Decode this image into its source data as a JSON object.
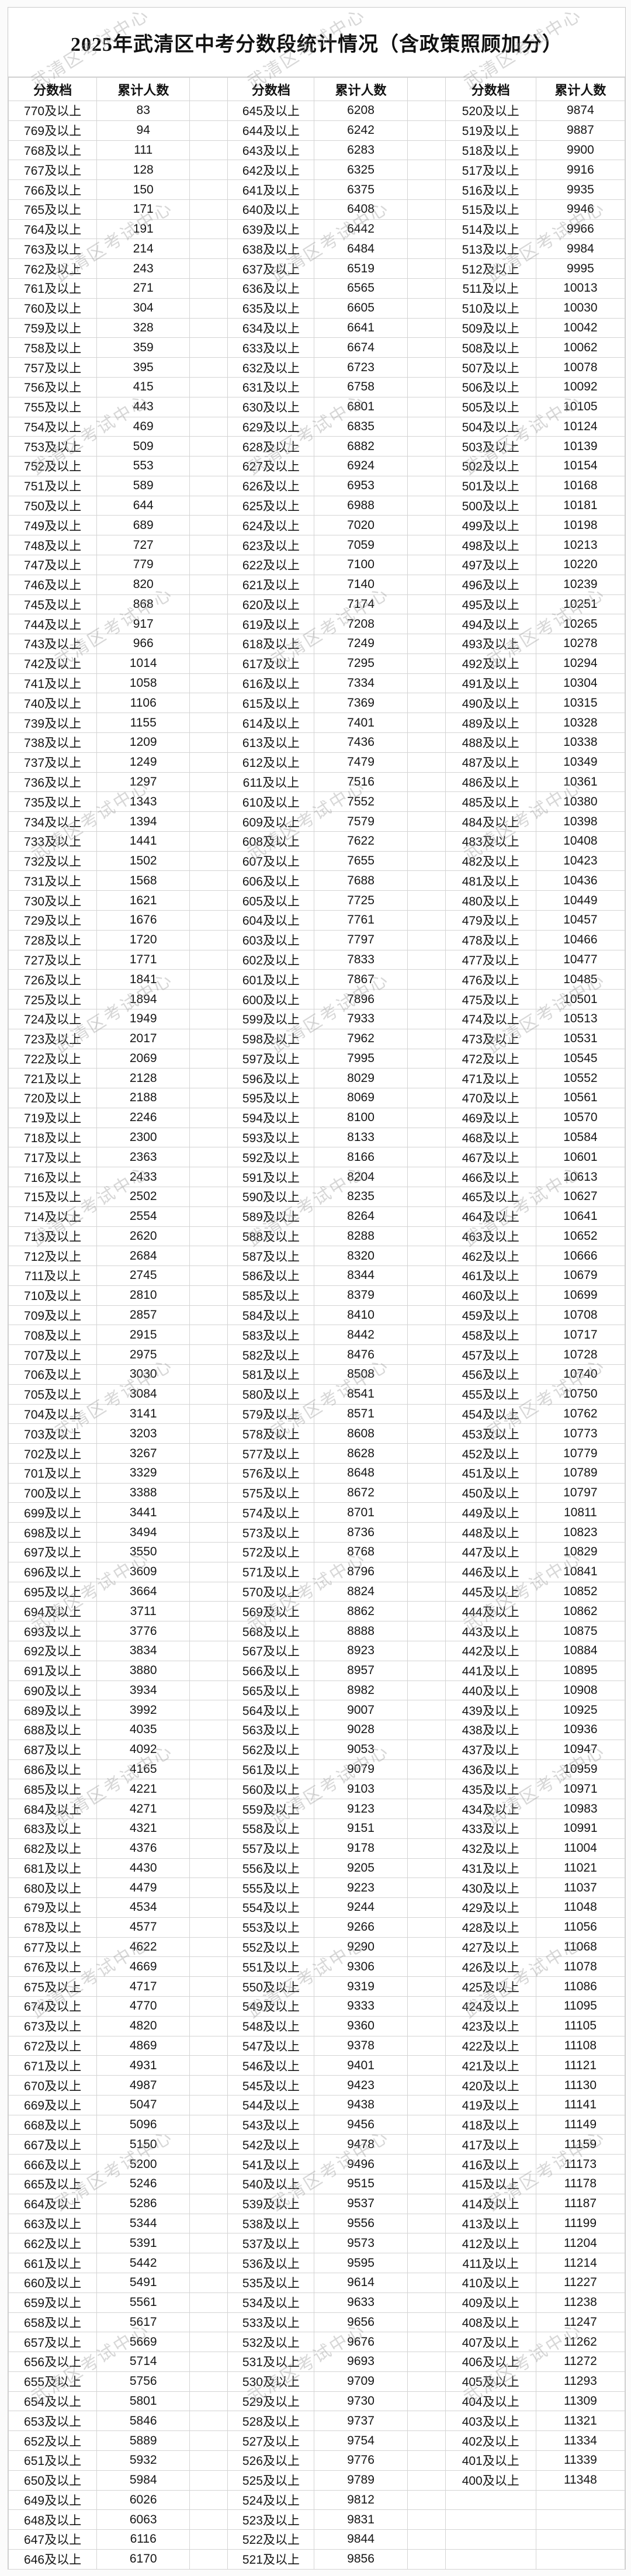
{
  "page": {
    "title": "2025年武清区中考分数段统计情况（含政策照顾加分）",
    "watermark": "武清区考试中心"
  },
  "table": {
    "score_header": "分数档",
    "count_header": "累计人数",
    "score_suffix": "及以上",
    "groups": [
      [
        [
          770,
          83
        ],
        [
          769,
          94
        ],
        [
          768,
          111
        ],
        [
          767,
          128
        ],
        [
          766,
          150
        ],
        [
          765,
          171
        ],
        [
          764,
          191
        ],
        [
          763,
          214
        ],
        [
          762,
          243
        ],
        [
          761,
          271
        ],
        [
          760,
          304
        ],
        [
          759,
          328
        ],
        [
          758,
          359
        ],
        [
          757,
          395
        ],
        [
          756,
          415
        ],
        [
          755,
          443
        ],
        [
          754,
          469
        ],
        [
          753,
          509
        ],
        [
          752,
          553
        ],
        [
          751,
          589
        ],
        [
          750,
          644
        ],
        [
          749,
          689
        ],
        [
          748,
          727
        ],
        [
          747,
          779
        ],
        [
          746,
          820
        ],
        [
          745,
          868
        ],
        [
          744,
          917
        ],
        [
          743,
          966
        ],
        [
          742,
          1014
        ],
        [
          741,
          1058
        ],
        [
          740,
          1106
        ],
        [
          739,
          1155
        ],
        [
          738,
          1209
        ],
        [
          737,
          1249
        ],
        [
          736,
          1297
        ],
        [
          735,
          1343
        ],
        [
          734,
          1394
        ],
        [
          733,
          1441
        ],
        [
          732,
          1502
        ],
        [
          731,
          1568
        ],
        [
          730,
          1621
        ],
        [
          729,
          1676
        ],
        [
          728,
          1720
        ],
        [
          727,
          1771
        ],
        [
          726,
          1841
        ],
        [
          725,
          1894
        ],
        [
          724,
          1949
        ],
        [
          723,
          2017
        ],
        [
          722,
          2069
        ],
        [
          721,
          2128
        ],
        [
          720,
          2188
        ],
        [
          719,
          2246
        ],
        [
          718,
          2300
        ],
        [
          717,
          2363
        ],
        [
          716,
          2433
        ],
        [
          715,
          2502
        ],
        [
          714,
          2554
        ],
        [
          713,
          2620
        ],
        [
          712,
          2684
        ],
        [
          711,
          2745
        ],
        [
          710,
          2810
        ],
        [
          709,
          2857
        ],
        [
          708,
          2915
        ],
        [
          707,
          2975
        ],
        [
          706,
          3030
        ],
        [
          705,
          3084
        ],
        [
          704,
          3141
        ],
        [
          703,
          3203
        ],
        [
          702,
          3267
        ],
        [
          701,
          3329
        ],
        [
          700,
          3388
        ],
        [
          699,
          3441
        ],
        [
          698,
          3494
        ],
        [
          697,
          3550
        ],
        [
          696,
          3609
        ],
        [
          695,
          3664
        ],
        [
          694,
          3711
        ],
        [
          693,
          3776
        ],
        [
          692,
          3834
        ],
        [
          691,
          3880
        ],
        [
          690,
          3934
        ],
        [
          689,
          3992
        ],
        [
          688,
          4035
        ],
        [
          687,
          4092
        ],
        [
          686,
          4165
        ],
        [
          685,
          4221
        ],
        [
          684,
          4271
        ],
        [
          683,
          4321
        ],
        [
          682,
          4376
        ],
        [
          681,
          4430
        ],
        [
          680,
          4479
        ],
        [
          679,
          4534
        ],
        [
          678,
          4577
        ],
        [
          677,
          4622
        ],
        [
          676,
          4669
        ],
        [
          675,
          4717
        ],
        [
          674,
          4770
        ],
        [
          673,
          4820
        ],
        [
          672,
          4869
        ],
        [
          671,
          4931
        ],
        [
          670,
          4987
        ],
        [
          669,
          5047
        ],
        [
          668,
          5096
        ],
        [
          667,
          5150
        ],
        [
          666,
          5200
        ],
        [
          665,
          5246
        ],
        [
          664,
          5286
        ],
        [
          663,
          5344
        ],
        [
          662,
          5391
        ],
        [
          661,
          5442
        ],
        [
          660,
          5491
        ],
        [
          659,
          5561
        ],
        [
          658,
          5617
        ],
        [
          657,
          5669
        ],
        [
          656,
          5714
        ],
        [
          655,
          5756
        ],
        [
          654,
          5801
        ],
        [
          653,
          5846
        ],
        [
          652,
          5889
        ],
        [
          651,
          5932
        ],
        [
          650,
          5984
        ],
        [
          649,
          6026
        ],
        [
          648,
          6063
        ],
        [
          647,
          6116
        ],
        [
          646,
          6170
        ]
      ],
      [
        [
          645,
          6208
        ],
        [
          644,
          6242
        ],
        [
          643,
          6283
        ],
        [
          642,
          6325
        ],
        [
          641,
          6375
        ],
        [
          640,
          6408
        ],
        [
          639,
          6442
        ],
        [
          638,
          6484
        ],
        [
          637,
          6519
        ],
        [
          636,
          6565
        ],
        [
          635,
          6605
        ],
        [
          634,
          6641
        ],
        [
          633,
          6674
        ],
        [
          632,
          6723
        ],
        [
          631,
          6758
        ],
        [
          630,
          6801
        ],
        [
          629,
          6835
        ],
        [
          628,
          6882
        ],
        [
          627,
          6924
        ],
        [
          626,
          6953
        ],
        [
          625,
          6988
        ],
        [
          624,
          7020
        ],
        [
          623,
          7059
        ],
        [
          622,
          7100
        ],
        [
          621,
          7140
        ],
        [
          620,
          7174
        ],
        [
          619,
          7208
        ],
        [
          618,
          7249
        ],
        [
          617,
          7295
        ],
        [
          616,
          7334
        ],
        [
          615,
          7369
        ],
        [
          614,
          7401
        ],
        [
          613,
          7436
        ],
        [
          612,
          7479
        ],
        [
          611,
          7516
        ],
        [
          610,
          7552
        ],
        [
          609,
          7579
        ],
        [
          608,
          7622
        ],
        [
          607,
          7655
        ],
        [
          606,
          7688
        ],
        [
          605,
          7725
        ],
        [
          604,
          7761
        ],
        [
          603,
          7797
        ],
        [
          602,
          7833
        ],
        [
          601,
          7867
        ],
        [
          600,
          7896
        ],
        [
          599,
          7933
        ],
        [
          598,
          7962
        ],
        [
          597,
          7995
        ],
        [
          596,
          8029
        ],
        [
          595,
          8069
        ],
        [
          594,
          8100
        ],
        [
          593,
          8133
        ],
        [
          592,
          8166
        ],
        [
          591,
          8204
        ],
        [
          590,
          8235
        ],
        [
          589,
          8264
        ],
        [
          588,
          8288
        ],
        [
          587,
          8320
        ],
        [
          586,
          8344
        ],
        [
          585,
          8379
        ],
        [
          584,
          8410
        ],
        [
          583,
          8442
        ],
        [
          582,
          8476
        ],
        [
          581,
          8508
        ],
        [
          580,
          8541
        ],
        [
          579,
          8571
        ],
        [
          578,
          8608
        ],
        [
          577,
          8628
        ],
        [
          576,
          8648
        ],
        [
          575,
          8672
        ],
        [
          574,
          8701
        ],
        [
          573,
          8736
        ],
        [
          572,
          8768
        ],
        [
          571,
          8796
        ],
        [
          570,
          8824
        ],
        [
          569,
          8862
        ],
        [
          568,
          8888
        ],
        [
          567,
          8923
        ],
        [
          566,
          8957
        ],
        [
          565,
          8982
        ],
        [
          564,
          9007
        ],
        [
          563,
          9028
        ],
        [
          562,
          9053
        ],
        [
          561,
          9079
        ],
        [
          560,
          9103
        ],
        [
          559,
          9123
        ],
        [
          558,
          9151
        ],
        [
          557,
          9178
        ],
        [
          556,
          9205
        ],
        [
          555,
          9223
        ],
        [
          554,
          9244
        ],
        [
          553,
          9266
        ],
        [
          552,
          9290
        ],
        [
          551,
          9306
        ],
        [
          550,
          9319
        ],
        [
          549,
          9333
        ],
        [
          548,
          9360
        ],
        [
          547,
          9378
        ],
        [
          546,
          9401
        ],
        [
          545,
          9423
        ],
        [
          544,
          9438
        ],
        [
          543,
          9456
        ],
        [
          542,
          9478
        ],
        [
          541,
          9496
        ],
        [
          540,
          9515
        ],
        [
          539,
          9537
        ],
        [
          538,
          9556
        ],
        [
          537,
          9573
        ],
        [
          536,
          9595
        ],
        [
          535,
          9614
        ],
        [
          534,
          9633
        ],
        [
          533,
          9656
        ],
        [
          532,
          9676
        ],
        [
          531,
          9693
        ],
        [
          530,
          9709
        ],
        [
          529,
          9730
        ],
        [
          528,
          9737
        ],
        [
          527,
          9754
        ],
        [
          526,
          9776
        ],
        [
          525,
          9789
        ],
        [
          524,
          9812
        ],
        [
          523,
          9831
        ],
        [
          522,
          9844
        ],
        [
          521,
          9856
        ]
      ],
      [
        [
          520,
          9874
        ],
        [
          519,
          9887
        ],
        [
          518,
          9900
        ],
        [
          517,
          9916
        ],
        [
          516,
          9935
        ],
        [
          515,
          9946
        ],
        [
          514,
          9966
        ],
        [
          513,
          9984
        ],
        [
          512,
          9995
        ],
        [
          511,
          10013
        ],
        [
          510,
          10030
        ],
        [
          509,
          10042
        ],
        [
          508,
          10062
        ],
        [
          507,
          10078
        ],
        [
          506,
          10092
        ],
        [
          505,
          10105
        ],
        [
          504,
          10124
        ],
        [
          503,
          10139
        ],
        [
          502,
          10154
        ],
        [
          501,
          10168
        ],
        [
          500,
          10181
        ],
        [
          499,
          10198
        ],
        [
          498,
          10213
        ],
        [
          497,
          10220
        ],
        [
          496,
          10239
        ],
        [
          495,
          10251
        ],
        [
          494,
          10265
        ],
        [
          493,
          10278
        ],
        [
          492,
          10294
        ],
        [
          491,
          10304
        ],
        [
          490,
          10315
        ],
        [
          489,
          10328
        ],
        [
          488,
          10338
        ],
        [
          487,
          10349
        ],
        [
          486,
          10361
        ],
        [
          485,
          10380
        ],
        [
          484,
          10398
        ],
        [
          483,
          10408
        ],
        [
          482,
          10423
        ],
        [
          481,
          10436
        ],
        [
          480,
          10449
        ],
        [
          479,
          10457
        ],
        [
          478,
          10466
        ],
        [
          477,
          10477
        ],
        [
          476,
          10485
        ],
        [
          475,
          10501
        ],
        [
          474,
          10513
        ],
        [
          473,
          10531
        ],
        [
          472,
          10545
        ],
        [
          471,
          10552
        ],
        [
          470,
          10561
        ],
        [
          469,
          10570
        ],
        [
          468,
          10584
        ],
        [
          467,
          10601
        ],
        [
          466,
          10613
        ],
        [
          465,
          10627
        ],
        [
          464,
          10641
        ],
        [
          463,
          10652
        ],
        [
          462,
          10666
        ],
        [
          461,
          10679
        ],
        [
          460,
          10699
        ],
        [
          459,
          10708
        ],
        [
          458,
          10717
        ],
        [
          457,
          10728
        ],
        [
          456,
          10740
        ],
        [
          455,
          10750
        ],
        [
          454,
          10762
        ],
        [
          453,
          10773
        ],
        [
          452,
          10779
        ],
        [
          451,
          10789
        ],
        [
          450,
          10797
        ],
        [
          449,
          10811
        ],
        [
          448,
          10823
        ],
        [
          447,
          10829
        ],
        [
          446,
          10841
        ],
        [
          445,
          10852
        ],
        [
          444,
          10862
        ],
        [
          443,
          10875
        ],
        [
          442,
          10884
        ],
        [
          441,
          10895
        ],
        [
          440,
          10908
        ],
        [
          439,
          10925
        ],
        [
          438,
          10936
        ],
        [
          437,
          10947
        ],
        [
          436,
          10959
        ],
        [
          435,
          10971
        ],
        [
          434,
          10983
        ],
        [
          433,
          10991
        ],
        [
          432,
          11004
        ],
        [
          431,
          11021
        ],
        [
          430,
          11037
        ],
        [
          429,
          11048
        ],
        [
          428,
          11056
        ],
        [
          427,
          11068
        ],
        [
          426,
          11078
        ],
        [
          425,
          11086
        ],
        [
          424,
          11095
        ],
        [
          423,
          11105
        ],
        [
          422,
          11108
        ],
        [
          421,
          11121
        ],
        [
          420,
          11130
        ],
        [
          419,
          11141
        ],
        [
          418,
          11149
        ],
        [
          417,
          11159
        ],
        [
          416,
          11173
        ],
        [
          415,
          11178
        ],
        [
          414,
          11187
        ],
        [
          413,
          11199
        ],
        [
          412,
          11204
        ],
        [
          411,
          11214
        ],
        [
          410,
          11227
        ],
        [
          409,
          11238
        ],
        [
          408,
          11247
        ],
        [
          407,
          11262
        ],
        [
          406,
          11272
        ],
        [
          405,
          11293
        ],
        [
          404,
          11309
        ],
        [
          403,
          11321
        ],
        [
          402,
          11334
        ],
        [
          401,
          11339
        ],
        [
          400,
          11348
        ]
      ]
    ]
  }
}
